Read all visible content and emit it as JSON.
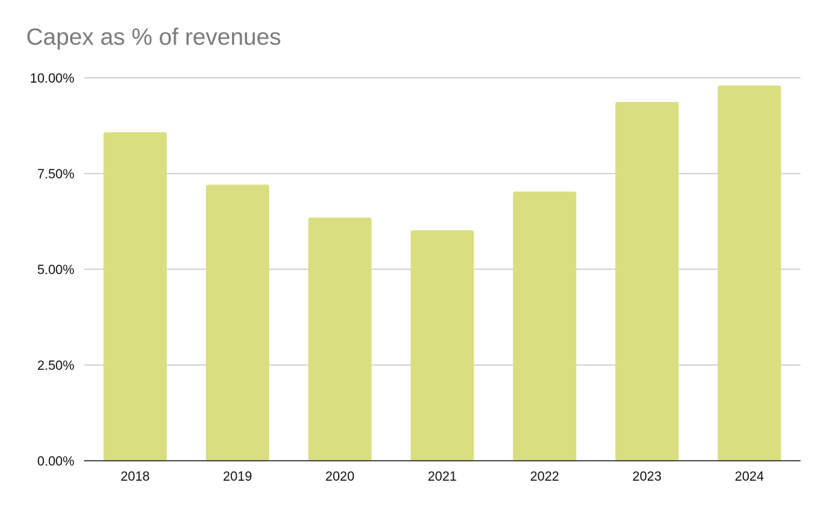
{
  "chart_data": {
    "type": "bar",
    "title": "Capex as % of revenues",
    "xlabel": "",
    "ylabel": "",
    "categories": [
      "2018",
      "2019",
      "2020",
      "2021",
      "2022",
      "2023",
      "2024"
    ],
    "values": [
      8.58,
      7.21,
      6.35,
      6.02,
      7.03,
      9.37,
      9.8
    ],
    "ylim": [
      0,
      10
    ],
    "yticks": [
      0,
      2.5,
      5,
      7.5,
      10
    ],
    "ytick_labels": [
      "0.00%",
      "2.50%",
      "5.00%",
      "7.50%",
      "10.00%"
    ],
    "grid": true,
    "legend": "none",
    "colors": {
      "bar": "#d9df80",
      "grid": "#c8c8c8",
      "axis": "#222222",
      "title": "#7b7b7b"
    }
  }
}
